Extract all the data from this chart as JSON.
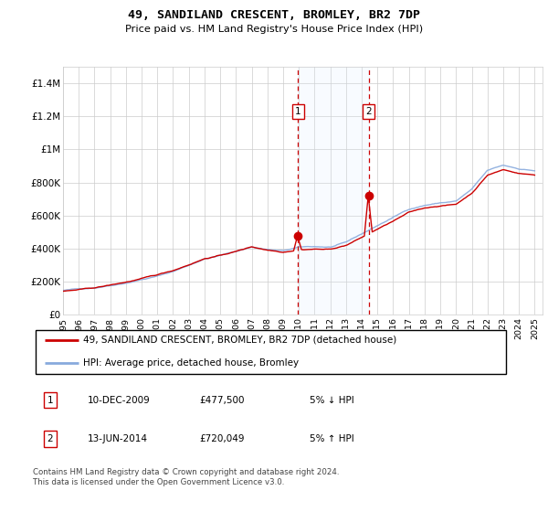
{
  "title": "49, SANDILAND CRESCENT, BROMLEY, BR2 7DP",
  "subtitle": "Price paid vs. HM Land Registry's House Price Index (HPI)",
  "ylim": [
    0,
    1500000
  ],
  "xlim": [
    1995.0,
    2025.5
  ],
  "yticks": [
    0,
    200000,
    400000,
    600000,
    800000,
    1000000,
    1200000,
    1400000
  ],
  "ytick_labels": [
    "£0",
    "£200K",
    "£400K",
    "£600K",
    "£800K",
    "£1M",
    "£1.2M",
    "£1.4M"
  ],
  "xtick_years": [
    1995,
    1996,
    1997,
    1998,
    1999,
    2000,
    2001,
    2002,
    2003,
    2004,
    2005,
    2006,
    2007,
    2008,
    2009,
    2010,
    2011,
    2012,
    2013,
    2014,
    2015,
    2016,
    2017,
    2018,
    2019,
    2020,
    2021,
    2022,
    2023,
    2024,
    2025
  ],
  "sale1_x": 2009.958,
  "sale1_y": 477500,
  "sale1_label": "1",
  "sale2_x": 2014.458,
  "sale2_y": 720049,
  "sale2_label": "2",
  "legend_line1": "49, SANDILAND CRESCENT, BROMLEY, BR2 7DP (detached house)",
  "legend_line2": "HPI: Average price, detached house, Bromley",
  "table_row1": [
    "1",
    "10-DEC-2009",
    "£477,500",
    "5% ↓ HPI"
  ],
  "table_row2": [
    "2",
    "13-JUN-2014",
    "£720,049",
    "5% ↑ HPI"
  ],
  "footnote": "Contains HM Land Registry data © Crown copyright and database right 2024.\nThis data is licensed under the Open Government Licence v3.0.",
  "line_color_property": "#cc0000",
  "line_color_hpi": "#88aadd",
  "shade_color": "#ddeeff",
  "grid_color": "#cccccc"
}
